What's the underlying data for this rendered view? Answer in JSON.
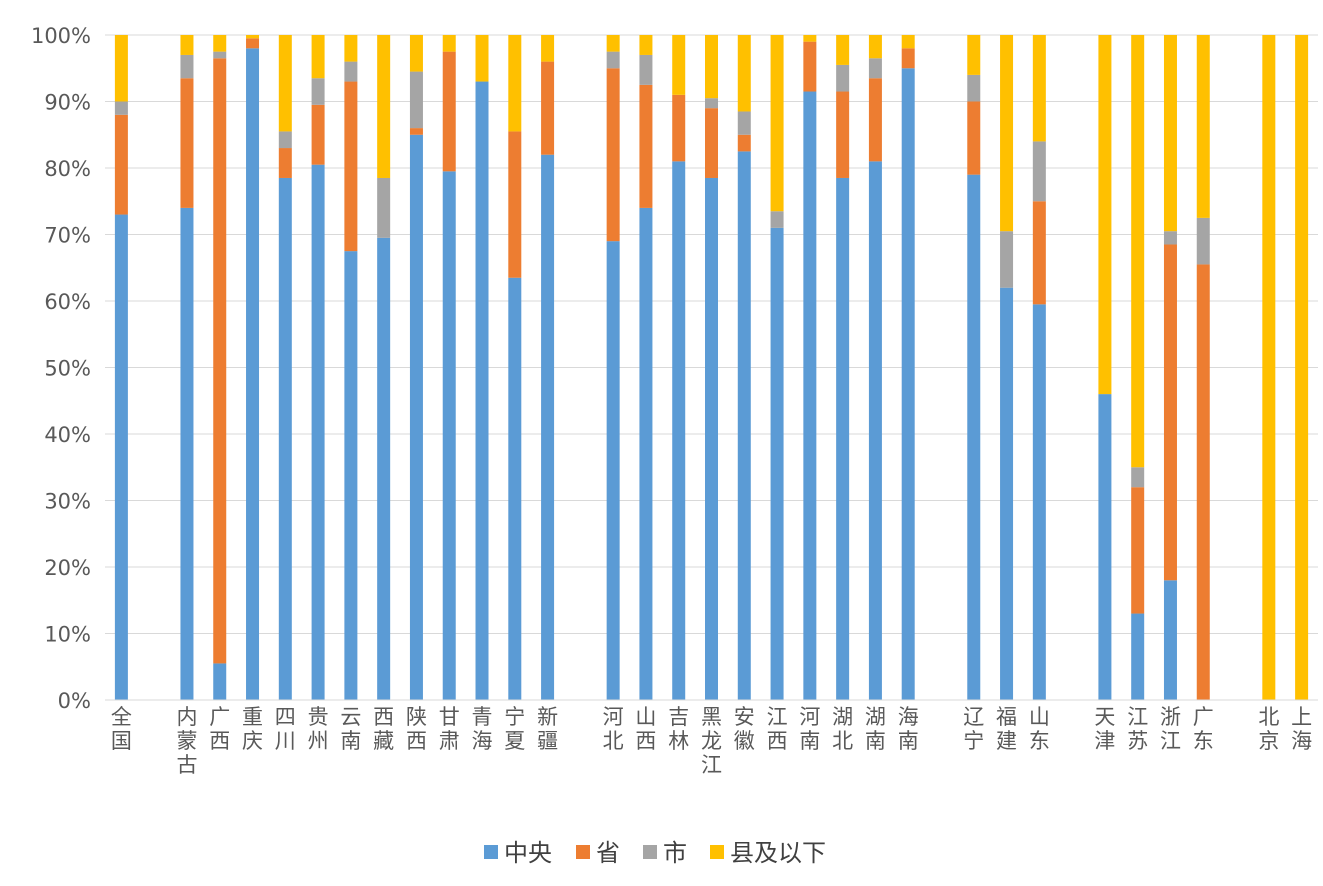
{
  "chart_data": {
    "type": "bar",
    "stacked": true,
    "percent_stacked": true,
    "ylim": [
      0,
      100
    ],
    "y_ticks": [
      "0%",
      "10%",
      "20%",
      "30%",
      "40%",
      "50%",
      "60%",
      "70%",
      "80%",
      "90%",
      "100%"
    ],
    "grid": true,
    "legend_position": "bottom",
    "categories": [
      "全国",
      "内蒙古",
      "广西",
      "重庆",
      "四川",
      "贵州",
      "云南",
      "西藏",
      "陕西",
      "甘肃",
      "青海",
      "宁夏",
      "新疆",
      "河北",
      "山西",
      "吉林",
      "黑龙江",
      "安徽",
      "江西",
      "河南",
      "湖北",
      "湖南",
      "海南",
      "辽宁",
      "福建",
      "山东",
      "天津",
      "江苏",
      "浙江",
      "广东",
      "北京",
      "上海"
    ],
    "groups": [
      {
        "start": 0,
        "size": 1
      },
      {
        "start": 1,
        "size": 12
      },
      {
        "start": 13,
        "size": 10
      },
      {
        "start": 23,
        "size": 3
      },
      {
        "start": 26,
        "size": 4
      },
      {
        "start": 30,
        "size": 2
      }
    ],
    "series": [
      {
        "name": "中央",
        "color": "#5B9BD5",
        "values": [
          73,
          74,
          5.5,
          98,
          78.5,
          80.5,
          67.5,
          69.5,
          85,
          79.5,
          93,
          63.5,
          82,
          69,
          74,
          81,
          78.5,
          82.5,
          71,
          91.5,
          78.5,
          81,
          95,
          79,
          62,
          59.5,
          46,
          13,
          18,
          0,
          0,
          0
        ]
      },
      {
        "name": "省",
        "color": "#ED7D31",
        "values": [
          15,
          19.5,
          91,
          1.5,
          4.5,
          9,
          25.5,
          0,
          1,
          18,
          0,
          22,
          14,
          26,
          18.5,
          10,
          10.5,
          2.5,
          0,
          7.5,
          13,
          12.5,
          3,
          11,
          0,
          15.5,
          0,
          19,
          50.5,
          65.5,
          0,
          0
        ]
      },
      {
        "name": "市",
        "color": "#A5A5A5",
        "values": [
          2,
          3.5,
          1,
          0,
          2.5,
          4,
          3,
          9,
          8.5,
          0,
          0,
          0,
          0,
          2.5,
          4.5,
          0,
          1.5,
          3.5,
          2.5,
          0,
          4,
          3,
          0,
          4,
          8.5,
          9,
          0,
          3,
          2,
          7,
          0,
          0
        ]
      },
      {
        "name": "县及以下",
        "color": "#FFC000",
        "values": [
          10,
          3,
          2.5,
          0.5,
          14.5,
          6.5,
          4,
          21.5,
          5.5,
          2.5,
          7,
          14.5,
          4,
          2.5,
          3,
          9,
          9.5,
          11.5,
          26.5,
          1,
          4.5,
          3.5,
          2,
          6,
          29.5,
          16,
          54,
          65,
          29.5,
          27.5,
          100,
          100
        ]
      }
    ]
  }
}
